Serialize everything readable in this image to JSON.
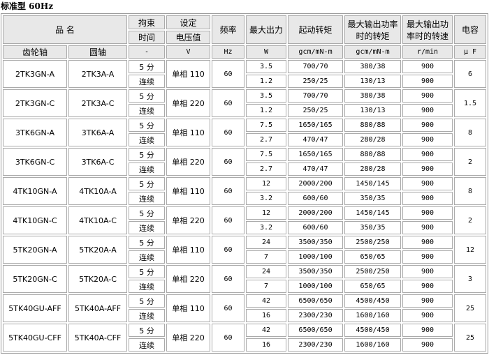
{
  "title": "标准型 60Hz",
  "header": {
    "name": "品 名",
    "lock": "拘束",
    "lock2": "时间",
    "setv": "设定",
    "setv2": "电压值",
    "freq": "频率",
    "maxout": "最大出力",
    "start": "起动转矩",
    "maxtorque": "最大输出功率时的转矩",
    "maxspeed": "最大输出功率时的转速",
    "cap": "电容"
  },
  "units": {
    "gear": "齿轮轴",
    "round": "圆轴",
    "time": "-",
    "volt": "V",
    "freq": "Hz",
    "out": "W",
    "start": "gcm/mN-m",
    "torque": "gcm/mN-m",
    "speed": "r/min",
    "cap": "μ F"
  },
  "groups": [
    {
      "gear": "2TK3GN-A",
      "round": "2TK3A-A",
      "volt": "单相 110",
      "freq": "60",
      "cap": "6",
      "rows": [
        {
          "time": "5 分",
          "out": "3.5",
          "start": "700/70",
          "torque": "380/38",
          "speed": "900"
        },
        {
          "time": "连续",
          "out": "1.2",
          "start": "250/25",
          "torque": "130/13",
          "speed": "900"
        }
      ]
    },
    {
      "gear": "2TK3GN-C",
      "round": "2TK3A-C",
      "volt": "单相 220",
      "freq": "60",
      "cap": "1.5",
      "rows": [
        {
          "time": "5 分",
          "out": "3.5",
          "start": "700/70",
          "torque": "380/38",
          "speed": "900"
        },
        {
          "time": "连续",
          "out": "1.2",
          "start": "250/25",
          "torque": "130/13",
          "speed": "900"
        }
      ]
    },
    {
      "gear": "3TK6GN-A",
      "round": "3TK6A-A",
      "volt": "单相 110",
      "freq": "60",
      "cap": "8",
      "rows": [
        {
          "time": "5 分",
          "out": "7.5",
          "start": "1650/165",
          "torque": "880/88",
          "speed": "900"
        },
        {
          "time": "连续",
          "out": "2.7",
          "start": "470/47",
          "torque": "280/28",
          "speed": "900"
        }
      ]
    },
    {
      "gear": "3TK6GN-C",
      "round": "3TK6A-C",
      "volt": "单相 220",
      "freq": "60",
      "cap": "2",
      "rows": [
        {
          "time": "5 分",
          "out": "7.5",
          "start": "1650/165",
          "torque": "880/88",
          "speed": "900"
        },
        {
          "time": "连续",
          "out": "2.7",
          "start": "470/47",
          "torque": "280/28",
          "speed": "900"
        }
      ]
    },
    {
      "gear": "4TK10GN-A",
      "round": "4TK10A-A",
      "volt": "单相 110",
      "freq": "60",
      "cap": "8",
      "rows": [
        {
          "time": "5 分",
          "out": "12",
          "start": "2000/200",
          "torque": "1450/145",
          "speed": "900"
        },
        {
          "time": "连续",
          "out": "3.2",
          "start": "600/60",
          "torque": "350/35",
          "speed": "900"
        }
      ]
    },
    {
      "gear": "4TK10GN-C",
      "round": "4TK10A-C",
      "volt": "单相 220",
      "freq": "60",
      "cap": "2",
      "rows": [
        {
          "time": "5 分",
          "out": "12",
          "start": "2000/200",
          "torque": "1450/145",
          "speed": "900"
        },
        {
          "time": "连续",
          "out": "3.2",
          "start": "600/60",
          "torque": "350/35",
          "speed": "900"
        }
      ]
    },
    {
      "gear": "5TK20GN-A",
      "round": "5TK20A-A",
      "volt": "单相 110",
      "freq": "60",
      "cap": "12",
      "rows": [
        {
          "time": "5 分",
          "out": "24",
          "start": "3500/350",
          "torque": "2500/250",
          "speed": "900"
        },
        {
          "time": "连续",
          "out": "7",
          "start": "1000/100",
          "torque": "650/65",
          "speed": "900"
        }
      ]
    },
    {
      "gear": "5TK20GN-C",
      "round": "5TK20A-C",
      "volt": "单相 220",
      "freq": "60",
      "cap": "3",
      "rows": [
        {
          "time": "5 分",
          "out": "24",
          "start": "3500/350",
          "torque": "2500/250",
          "speed": "900"
        },
        {
          "time": "连续",
          "out": "7",
          "start": "1000/100",
          "torque": "650/65",
          "speed": "900"
        }
      ]
    },
    {
      "gear": "5TK40GU-AFF",
      "round": "5TK40A-AFF",
      "volt": "单相 110",
      "freq": "60",
      "cap": "25",
      "rows": [
        {
          "time": "5 分",
          "out": "42",
          "start": "6500/650",
          "torque": "4500/450",
          "speed": "900"
        },
        {
          "time": "连续",
          "out": "16",
          "start": "2300/230",
          "torque": "1600/160",
          "speed": "900"
        }
      ]
    },
    {
      "gear": "5TK40GU-CFF",
      "round": "5TK40A-CFF",
      "volt": "单相 220",
      "freq": "60",
      "cap": "25",
      "rows": [
        {
          "time": "5 分",
          "out": "42",
          "start": "6500/650",
          "torque": "4500/450",
          "speed": "900"
        },
        {
          "time": "连续",
          "out": "16",
          "start": "2300/230",
          "torque": "1600/160",
          "speed": "900"
        }
      ]
    }
  ]
}
